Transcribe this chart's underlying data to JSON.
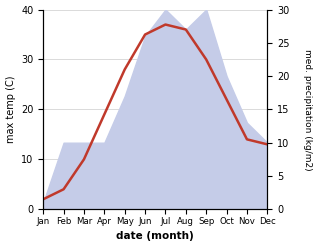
{
  "months": [
    "Jan",
    "Feb",
    "Mar",
    "Apr",
    "May",
    "Jun",
    "Jul",
    "Aug",
    "Sep",
    "Oct",
    "Nov",
    "Dec"
  ],
  "temp": [
    2,
    4,
    10,
    19,
    28,
    35,
    37,
    36,
    30,
    22,
    14,
    13
  ],
  "precip": [
    1,
    10,
    10,
    10,
    17,
    26,
    30,
    27,
    30,
    20,
    13,
    10
  ],
  "temp_color": "#c0392b",
  "precip_fill_color": "#c5cce8",
  "temp_ylim": [
    0,
    40
  ],
  "precip_ylim": [
    0,
    30
  ],
  "xlabel": "date (month)",
  "ylabel_left": "max temp (C)",
  "ylabel_right": "med. precipitation (kg/m2)",
  "bg_color": "#ffffff",
  "left_yticks": [
    0,
    10,
    20,
    30,
    40
  ],
  "right_yticks": [
    0,
    5,
    10,
    15,
    20,
    25,
    30
  ]
}
